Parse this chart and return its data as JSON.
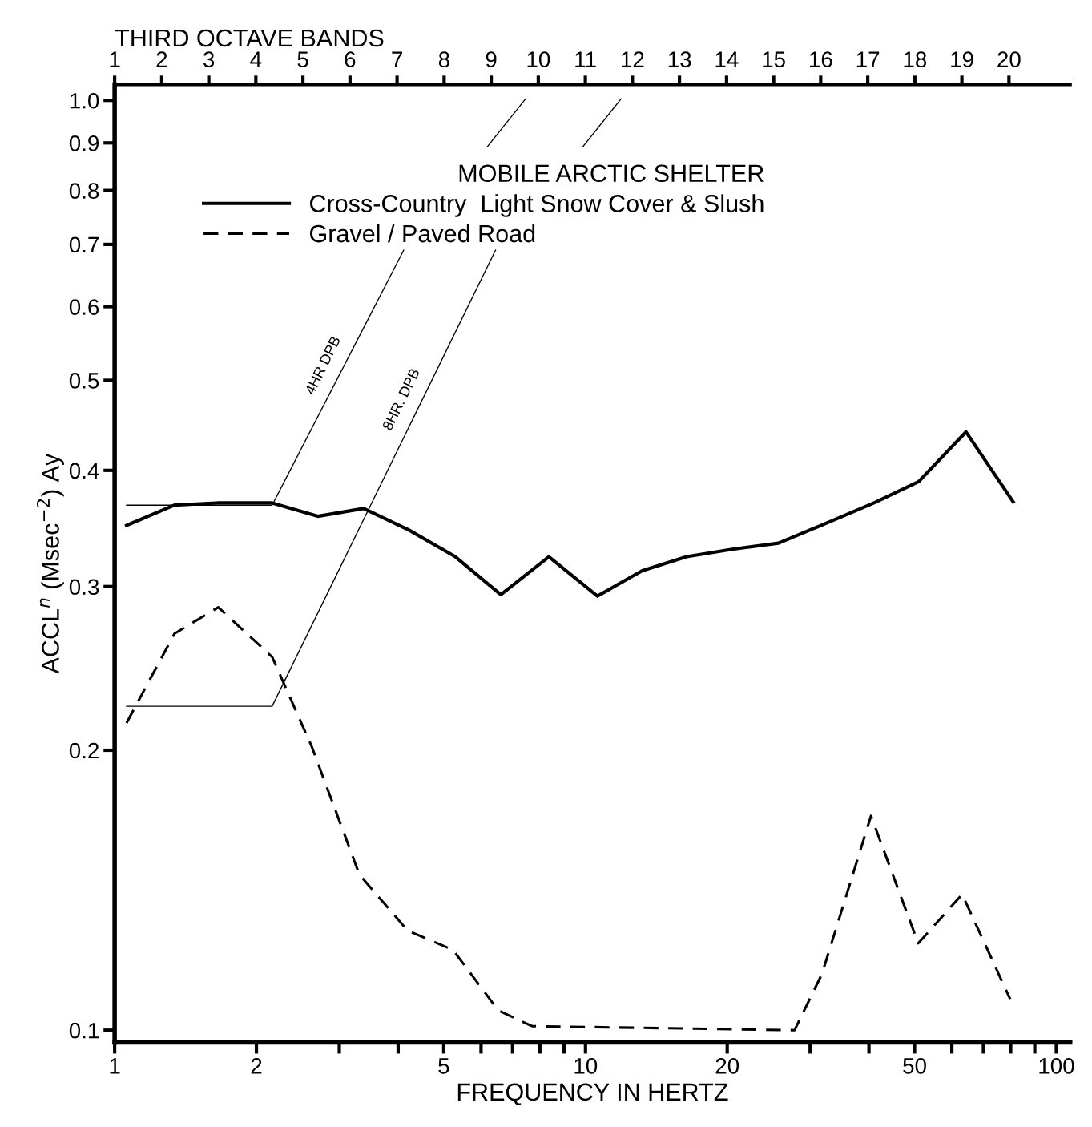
{
  "chart_data": {
    "type": "line",
    "xlabel": "FREQUENCY IN HERTZ",
    "ylabel": "ACCL$^{n}$ (Msec$^{−2}$) Ay",
    "x2label": "THIRD OCTAVE BANDS",
    "log": "xy",
    "xlim": [
      1,
      107
    ],
    "ylim": [
      0.097,
      1.04
    ],
    "xticks": [
      1,
      2,
      {
        "value": 3,
        "label": null
      },
      {
        "value": 4,
        "label": null
      },
      5,
      {
        "value": 6,
        "label": null
      },
      {
        "value": 7,
        "label": null
      },
      {
        "value": 8,
        "label": null
      },
      {
        "value": 9,
        "label": null
      },
      10,
      20,
      {
        "value": 30,
        "label": null
      },
      {
        "value": 40,
        "label": null
      },
      50,
      {
        "value": 60,
        "label": null
      },
      {
        "value": 70,
        "label": null
      },
      {
        "value": 80,
        "label": null
      },
      {
        "value": 90,
        "label": null
      },
      100
    ],
    "yticks": [
      0.1,
      0.2,
      0.3,
      0.4,
      0.5,
      0.6,
      0.7,
      0.8,
      0.9,
      {
        "value": 1,
        "label": "1.0"
      }
    ],
    "x2lim": [
      1,
      21.3
    ],
    "x2ticks": [
      1,
      2,
      3,
      4,
      5,
      6,
      7,
      8,
      9,
      10,
      11,
      12,
      13,
      14,
      15,
      16,
      17,
      18,
      19,
      20
    ],
    "annotations": [
      {
        "text": "4HR DPB",
        "x": 3.0,
        "y": 0.507
      },
      {
        "text": "8HR. DPB",
        "x": 4.4,
        "y": 0.466
      }
    ],
    "grid": false,
    "marker": "none",
    "legend": "top left",
    "legend_title": "MOBILE ARCTIC SHELTER",
    "series": [
      {
        "name": "Cross-Country  Light Snow Cover & Slush",
        "color": "#000000",
        "line_style": "solid",
        "x": [
          1.06,
          1.34,
          1.65,
          2.16,
          2.7,
          3.38,
          4.22,
          5.29,
          6.61,
          8.36,
          10.6,
          13.2,
          16.4,
          20.5,
          25.7,
          32.5,
          41,
          51,
          64.3,
          81
        ],
        "values": [
          0.349,
          0.367,
          0.369,
          0.369,
          0.357,
          0.364,
          0.345,
          0.323,
          0.294,
          0.323,
          0.293,
          0.312,
          0.323,
          0.329,
          0.334,
          0.351,
          0.369,
          0.389,
          0.44,
          0.37
        ]
      },
      {
        "name": "Gravel / Paved Road",
        "color": "#000000",
        "line_style": "dashed",
        "x": [
          1.06,
          1.34,
          1.66,
          2.16,
          2.62,
          3.31,
          4.19,
          5.23,
          6.53,
          7.7,
          27.8,
          31.8,
          40.4,
          50.9,
          63.1,
          79.8
        ],
        "values": [
          0.214,
          0.267,
          0.285,
          0.252,
          0.202,
          0.147,
          0.128,
          0.122,
          0.105,
          0.101,
          0.1,
          0.115,
          0.17,
          0.124,
          0.14,
          0.108
        ]
      },
      {
        "color": "#000000",
        "line_style": "solid",
        "x": [
          1.06,
          2.16,
          4.11
        ],
        "values": [
          0.367,
          0.367,
          0.69
        ]
      },
      {
        "color": "#000000",
        "line_style": "solid",
        "x": [
          1.06,
          2.16,
          6.44
        ],
        "values": [
          0.223,
          0.223,
          0.69
        ]
      }
    ]
  }
}
